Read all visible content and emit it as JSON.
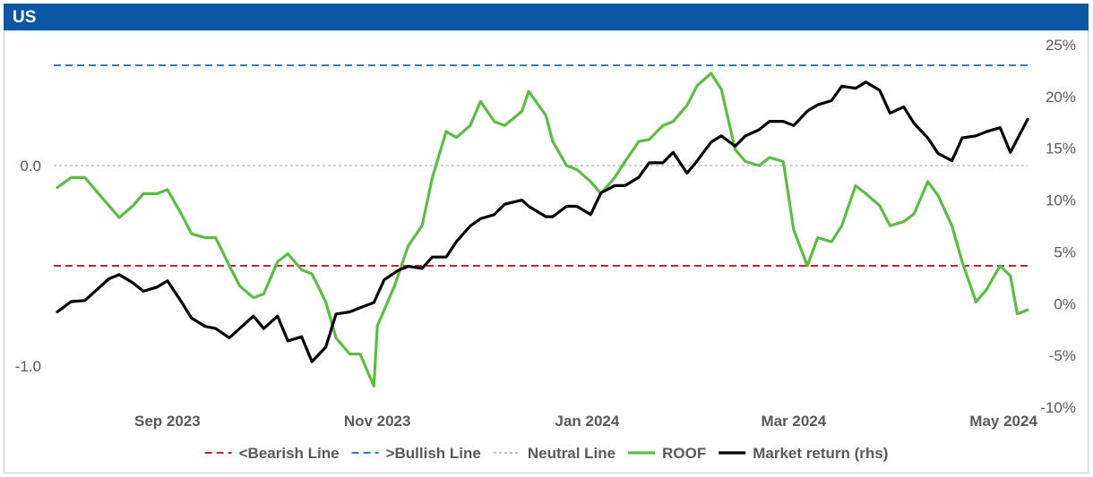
{
  "header": {
    "title": "US"
  },
  "colors": {
    "header_bg": "#0b57a4",
    "bearish": "#c0272d",
    "bullish": "#2e7dc4",
    "neutral": "#bfbfbf",
    "roof": "#5dbb46",
    "market": "#000000"
  },
  "chart_data": {
    "type": "line",
    "x_start": "2023-08-14",
    "x_end": "2024-05-22",
    "x_ticks": [
      "Sep 2023",
      "Nov 2023",
      "Jan 2024",
      "Mar 2024",
      "May 2024"
    ],
    "x_tick_dates": [
      "2023-09-15",
      "2023-11-15",
      "2024-01-15",
      "2024-03-15",
      "2024-05-15"
    ],
    "y_left": {
      "ticks": [
        "0.0",
        "-1.0"
      ],
      "tick_values": [
        0,
        -1
      ]
    },
    "y_right": {
      "ticks": [
        "25%",
        "20%",
        "15%",
        "10%",
        "5%",
        "0%",
        "-5%",
        "-10%"
      ],
      "tick_values": [
        25,
        20,
        15,
        10,
        5,
        0,
        -5,
        -10
      ],
      "unit": "%"
    },
    "reference_lines": [
      {
        "name": "<Bearish Line",
        "axis": "left",
        "value": -0.5,
        "style": "dashed",
        "color_key": "bearish"
      },
      {
        "name": ">Bullish Line",
        "axis": "left",
        "value": 0.5,
        "style": "dashed",
        "color_key": "bullish"
      },
      {
        "name": "Neutral Line",
        "axis": "left",
        "value": 0.0,
        "style": "dotted",
        "color_key": "neutral"
      }
    ],
    "legend_position": "bottom",
    "grid": false,
    "series": [
      {
        "name": "ROOF",
        "axis": "left",
        "color_key": "roof",
        "points": [
          [
            "2023-08-14",
            -0.11
          ],
          [
            "2023-08-18",
            -0.06
          ],
          [
            "2023-08-22",
            -0.06
          ],
          [
            "2023-08-25",
            -0.12
          ],
          [
            "2023-08-29",
            -0.2
          ],
          [
            "2023-09-01",
            -0.26
          ],
          [
            "2023-09-05",
            -0.2
          ],
          [
            "2023-09-08",
            -0.14
          ],
          [
            "2023-09-12",
            -0.14
          ],
          [
            "2023-09-15",
            -0.12
          ],
          [
            "2023-09-19",
            -0.24
          ],
          [
            "2023-09-22",
            -0.34
          ],
          [
            "2023-09-26",
            -0.36
          ],
          [
            "2023-09-29",
            -0.36
          ],
          [
            "2023-10-03",
            -0.5
          ],
          [
            "2023-10-06",
            -0.6
          ],
          [
            "2023-10-10",
            -0.66
          ],
          [
            "2023-10-13",
            -0.64
          ],
          [
            "2023-10-17",
            -0.48
          ],
          [
            "2023-10-20",
            -0.44
          ],
          [
            "2023-10-24",
            -0.52
          ],
          [
            "2023-10-27",
            -0.54
          ],
          [
            "2023-10-31",
            -0.68
          ],
          [
            "2023-11-03",
            -0.86
          ],
          [
            "2023-11-07",
            -0.94
          ],
          [
            "2023-11-10",
            -0.94
          ],
          [
            "2023-11-14",
            -1.1
          ],
          [
            "2023-11-15",
            -0.8
          ],
          [
            "2023-11-20",
            -0.6
          ],
          [
            "2023-11-24",
            -0.4
          ],
          [
            "2023-11-28",
            -0.3
          ],
          [
            "2023-12-01",
            -0.06
          ],
          [
            "2023-12-05",
            0.17
          ],
          [
            "2023-12-08",
            0.14
          ],
          [
            "2023-12-12",
            0.2
          ],
          [
            "2023-12-15",
            0.32
          ],
          [
            "2023-12-19",
            0.22
          ],
          [
            "2023-12-22",
            0.2
          ],
          [
            "2023-12-27",
            0.27
          ],
          [
            "2023-12-29",
            0.37
          ],
          [
            "2024-01-03",
            0.25
          ],
          [
            "2024-01-05",
            0.12
          ],
          [
            "2024-01-09",
            0.0
          ],
          [
            "2024-01-12",
            -0.02
          ],
          [
            "2024-01-16",
            -0.08
          ],
          [
            "2024-01-19",
            -0.14
          ],
          [
            "2024-01-23",
            -0.06
          ],
          [
            "2024-01-26",
            0.02
          ],
          [
            "2024-01-30",
            0.12
          ],
          [
            "2024-02-02",
            0.13
          ],
          [
            "2024-02-06",
            0.2
          ],
          [
            "2024-02-09",
            0.22
          ],
          [
            "2024-02-13",
            0.3
          ],
          [
            "2024-02-16",
            0.4
          ],
          [
            "2024-02-20",
            0.46
          ],
          [
            "2024-02-23",
            0.38
          ],
          [
            "2024-02-27",
            0.08
          ],
          [
            "2024-03-01",
            0.02
          ],
          [
            "2024-03-05",
            0.0
          ],
          [
            "2024-03-08",
            0.04
          ],
          [
            "2024-03-12",
            0.02
          ],
          [
            "2024-03-15",
            -0.32
          ],
          [
            "2024-03-19",
            -0.5
          ],
          [
            "2024-03-22",
            -0.36
          ],
          [
            "2024-03-26",
            -0.38
          ],
          [
            "2024-03-29",
            -0.3
          ],
          [
            "2024-04-02",
            -0.1
          ],
          [
            "2024-04-05",
            -0.14
          ],
          [
            "2024-04-09",
            -0.2
          ],
          [
            "2024-04-12",
            -0.3
          ],
          [
            "2024-04-16",
            -0.28
          ],
          [
            "2024-04-19",
            -0.24
          ],
          [
            "2024-04-23",
            -0.08
          ],
          [
            "2024-04-26",
            -0.15
          ],
          [
            "2024-04-30",
            -0.3
          ],
          [
            "2024-05-03",
            -0.48
          ],
          [
            "2024-05-07",
            -0.68
          ],
          [
            "2024-05-10",
            -0.62
          ],
          [
            "2024-05-14",
            -0.5
          ],
          [
            "2024-05-17",
            -0.55
          ],
          [
            "2024-05-19",
            -0.74
          ],
          [
            "2024-05-22",
            -0.72
          ]
        ]
      },
      {
        "name": "Market return (rhs)",
        "axis": "right",
        "color_key": "market",
        "points": [
          [
            "2023-08-14",
            -0.8
          ],
          [
            "2023-08-18",
            0.2
          ],
          [
            "2023-08-22",
            0.3
          ],
          [
            "2023-08-25",
            1.2
          ],
          [
            "2023-08-29",
            2.4
          ],
          [
            "2023-09-01",
            2.8
          ],
          [
            "2023-09-05",
            2.0
          ],
          [
            "2023-09-08",
            1.2
          ],
          [
            "2023-09-12",
            1.6
          ],
          [
            "2023-09-15",
            2.2
          ],
          [
            "2023-09-19",
            0.2
          ],
          [
            "2023-09-22",
            -1.4
          ],
          [
            "2023-09-26",
            -2.2
          ],
          [
            "2023-09-29",
            -2.4
          ],
          [
            "2023-10-03",
            -3.3
          ],
          [
            "2023-10-06",
            -2.4
          ],
          [
            "2023-10-10",
            -1.2
          ],
          [
            "2023-10-13",
            -2.4
          ],
          [
            "2023-10-17",
            -1.2
          ],
          [
            "2023-10-20",
            -3.6
          ],
          [
            "2023-10-24",
            -3.2
          ],
          [
            "2023-10-27",
            -5.6
          ],
          [
            "2023-10-31",
            -4.2
          ],
          [
            "2023-11-03",
            -1.0
          ],
          [
            "2023-11-07",
            -0.8
          ],
          [
            "2023-11-10",
            -0.4
          ],
          [
            "2023-11-14",
            0.1
          ],
          [
            "2023-11-17",
            2.3
          ],
          [
            "2023-11-21",
            3.2
          ],
          [
            "2023-11-24",
            3.6
          ],
          [
            "2023-11-28",
            3.4
          ],
          [
            "2023-12-01",
            4.5
          ],
          [
            "2023-12-05",
            4.5
          ],
          [
            "2023-12-08",
            6.0
          ],
          [
            "2023-12-12",
            7.5
          ],
          [
            "2023-12-15",
            8.2
          ],
          [
            "2023-12-19",
            8.6
          ],
          [
            "2023-12-22",
            9.6
          ],
          [
            "2023-12-27",
            10.0
          ],
          [
            "2023-12-29",
            9.4
          ],
          [
            "2024-01-03",
            8.4
          ],
          [
            "2024-01-05",
            8.4
          ],
          [
            "2024-01-09",
            9.4
          ],
          [
            "2024-01-12",
            9.4
          ],
          [
            "2024-01-16",
            8.6
          ],
          [
            "2024-01-19",
            10.7
          ],
          [
            "2024-01-23",
            11.4
          ],
          [
            "2024-01-26",
            11.4
          ],
          [
            "2024-01-30",
            12.2
          ],
          [
            "2024-02-02",
            13.6
          ],
          [
            "2024-02-06",
            13.6
          ],
          [
            "2024-02-09",
            14.6
          ],
          [
            "2024-02-13",
            12.6
          ],
          [
            "2024-02-16",
            13.8
          ],
          [
            "2024-02-20",
            15.6
          ],
          [
            "2024-02-23",
            16.2
          ],
          [
            "2024-02-27",
            15.2
          ],
          [
            "2024-03-01",
            16.2
          ],
          [
            "2024-03-05",
            16.8
          ],
          [
            "2024-03-08",
            17.6
          ],
          [
            "2024-03-12",
            17.6
          ],
          [
            "2024-03-15",
            17.2
          ],
          [
            "2024-03-19",
            18.6
          ],
          [
            "2024-03-22",
            19.2
          ],
          [
            "2024-03-26",
            19.6
          ],
          [
            "2024-03-29",
            21.0
          ],
          [
            "2024-04-02",
            20.8
          ],
          [
            "2024-04-05",
            21.4
          ],
          [
            "2024-04-09",
            20.6
          ],
          [
            "2024-04-12",
            18.4
          ],
          [
            "2024-04-16",
            19.0
          ],
          [
            "2024-04-19",
            17.4
          ],
          [
            "2024-04-23",
            16.0
          ],
          [
            "2024-04-26",
            14.5
          ],
          [
            "2024-04-30",
            13.8
          ],
          [
            "2024-05-03",
            16.0
          ],
          [
            "2024-05-07",
            16.2
          ],
          [
            "2024-05-10",
            16.6
          ],
          [
            "2024-05-14",
            17.0
          ],
          [
            "2024-05-17",
            14.6
          ],
          [
            "2024-05-22",
            17.8
          ]
        ]
      }
    ]
  }
}
